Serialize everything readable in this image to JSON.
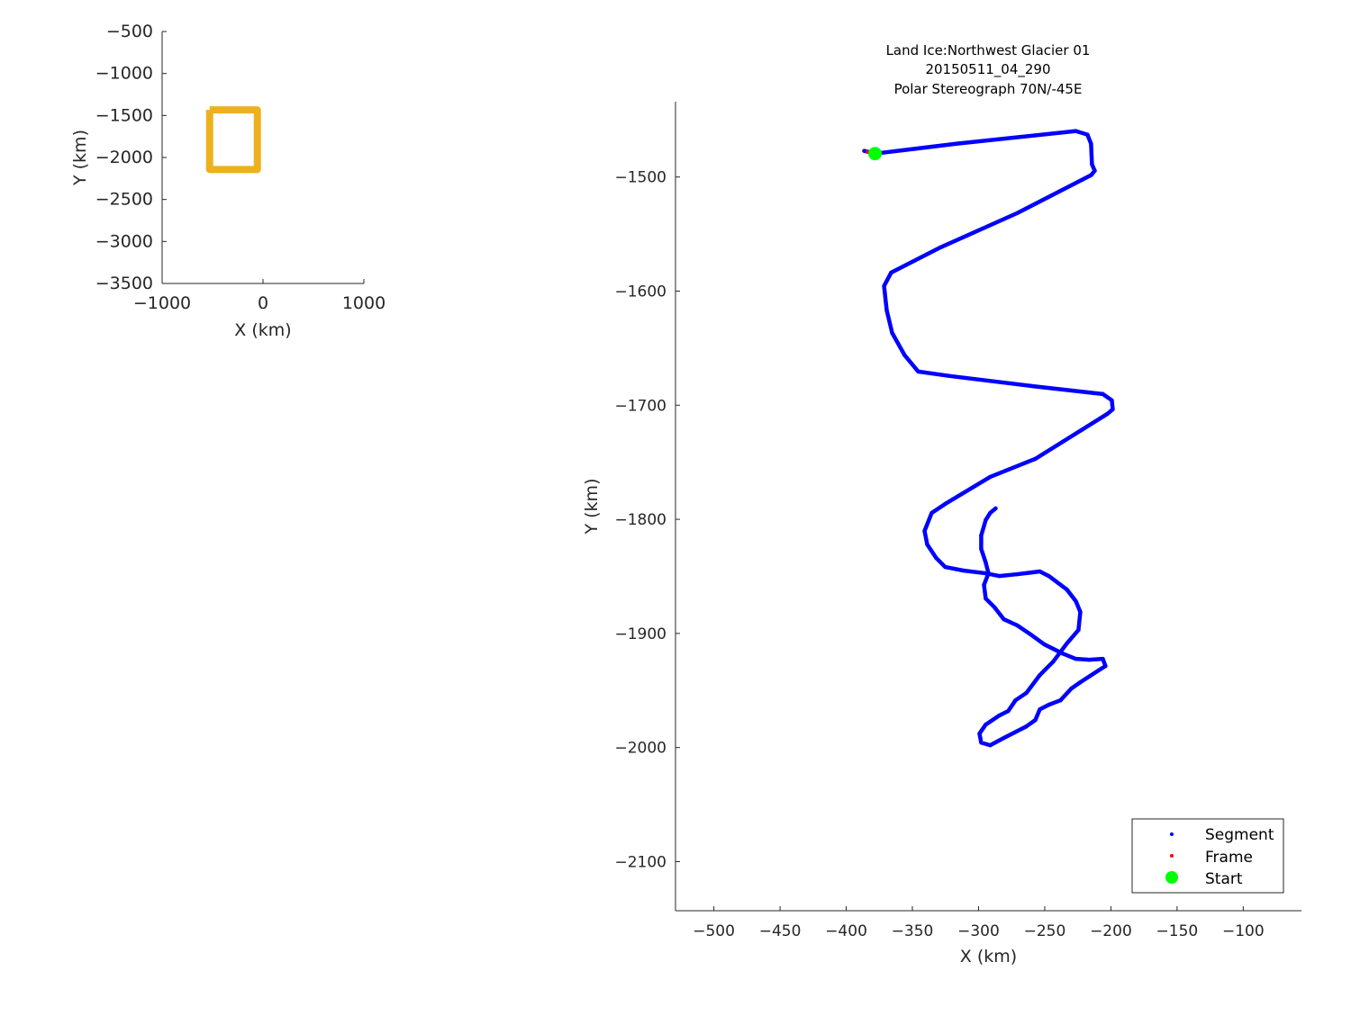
{
  "chart_data": [
    {
      "type": "line",
      "title": "",
      "xlabel": "X (km)",
      "ylabel": "Y (km)",
      "xlim": [
        -1000,
        1000
      ],
      "ylim": [
        -3500,
        -500
      ],
      "xticks": [
        -1000,
        0,
        1000
      ],
      "yticks": [
        -500,
        -1000,
        -1500,
        -2000,
        -2500,
        -3000,
        -3500
      ],
      "grid": false,
      "color": "#EDB120",
      "series": [
        {
          "x": [
            -529,
            -56,
            -56,
            -529,
            -529
          ],
          "y": [
            -1434,
            -1434,
            -2143,
            -2143,
            -1434
          ]
        }
      ]
    },
    {
      "type": "scatter",
      "title": [
        "Land Ice:Northwest Glacier 01",
        "20150511_04_290",
        "Polar Stereograph 70N/-45E"
      ],
      "xlabel": "X (km)",
      "ylabel": "Y (km)",
      "xlim": [
        -529,
        -56
      ],
      "ylim": [
        -2143,
        -1434
      ],
      "xticks": [
        -500,
        -450,
        -400,
        -350,
        -300,
        -250,
        -200,
        -150,
        -100
      ],
      "yticks": [
        -1500,
        -1600,
        -1700,
        -1800,
        -1900,
        -2000,
        -2100
      ],
      "grid": false,
      "legend": {
        "placement": "bottom-right",
        "entries": [
          "Segment",
          "Frame",
          "Start"
        ]
      },
      "series": [
        {
          "name": "Segment",
          "color": "#0000FF",
          "x": [
            -386.4,
            -378.2,
            -316.3,
            -226.5,
            -217.7,
            -215,
            -214.3,
            -212.2,
            -215,
            -270.7,
            -328.6,
            -366,
            -371.4,
            -369.4,
            -365.3,
            -355.8,
            -345.6,
            -321.8,
            -260.5,
            -206.1,
            -199.3,
            -198.6,
            -202.7,
            -257.1,
            -291.2,
            -325.2,
            -335.4,
            -340.8,
            -338.8,
            -332,
            -325.2,
            -311.6,
            -294.6,
            -284.4,
            -270.7,
            -253.7,
            -246.9,
            -233.3,
            -226.5,
            -223.1,
            -224.5,
            -233.3,
            -243.5,
            -253.7,
            -263.9,
            -272.1,
            -277.6,
            -284.4,
            -294.6,
            -299.3,
            -298,
            -291.2,
            -281,
            -263.9,
            -257.1,
            -253.7,
            -246.9,
            -238.1,
            -229.9,
            -223.1,
            -209.5,
            -204.1,
            -206.1,
            -216.3,
            -226.5,
            -236.7,
            -250.3,
            -260.5,
            -270.7,
            -281,
            -287.8,
            -294.6,
            -295.9,
            -292.5,
            -294.6,
            -298,
            -298,
            -294.6,
            -291.2,
            -287.1
          ],
          "y": [
            -1477.1,
            -1479.5,
            -1470.8,
            -1459.7,
            -1462.9,
            -1470.8,
            -1488.9,
            -1494.5,
            -1498.4,
            -1531.6,
            -1561.6,
            -1583.7,
            -1595.5,
            -1616.8,
            -1636.6,
            -1656.3,
            -1670.5,
            -1674.4,
            -1683.1,
            -1690.2,
            -1695.7,
            -1703.6,
            -1707.6,
            -1747,
            -1762.8,
            -1786.5,
            -1794.4,
            -1810.2,
            -1822,
            -1833.9,
            -1841.8,
            -1844.9,
            -1847.3,
            -1849.7,
            -1848.1,
            -1845.7,
            -1849.7,
            -1861.5,
            -1871.7,
            -1881.2,
            -1897,
            -1908.8,
            -1924.6,
            -1936.5,
            -1952.2,
            -1958.6,
            -1968,
            -1972,
            -1979.9,
            -1987.8,
            -1995.7,
            -1998,
            -1991.7,
            -1981.5,
            -1975.9,
            -1966.5,
            -1962.5,
            -1958.6,
            -1948.3,
            -1942.8,
            -1932.5,
            -1928.6,
            -1922.3,
            -1923.1,
            -1922.3,
            -1917.5,
            -1909.6,
            -1901,
            -1893,
            -1887.5,
            -1877.3,
            -1869.4,
            -1857.5,
            -1847.3,
            -1837.8,
            -1826,
            -1814.1,
            -1800.7,
            -1794.4,
            -1790.4
          ]
        },
        {
          "name": "Frame",
          "color": "#FF0000",
          "x": [
            -384
          ],
          "y": [
            -1478
          ]
        },
        {
          "name": "Start",
          "color": "#00FF00",
          "x": [
            -378.2
          ],
          "y": [
            -1479.5
          ]
        }
      ]
    }
  ]
}
